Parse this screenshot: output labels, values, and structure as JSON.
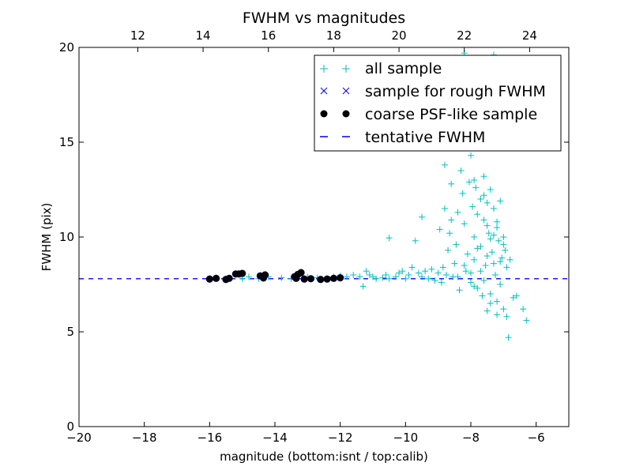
{
  "chart_data": {
    "type": "scatter",
    "title": "FWHM vs magnitudes",
    "xlabel": "magnitude (bottom:isnt / top:calib)",
    "ylabel": "FWHM (pix)",
    "xlim": [
      -20,
      -5
    ],
    "ylim": [
      0,
      20
    ],
    "top_xlim": [
      10.2,
      25.2
    ],
    "x_ticks": [
      -20,
      -18,
      -16,
      -14,
      -12,
      -10,
      -8,
      -6
    ],
    "x_tick_labels": [
      "−20",
      "−18",
      "−16",
      "−14",
      "−12",
      "−10",
      "−8",
      "−6"
    ],
    "y_ticks": [
      0,
      5,
      10,
      15,
      20
    ],
    "y_tick_labels": [
      "0",
      "5",
      "10",
      "15",
      "20"
    ],
    "top_x_ticks": [
      12,
      14,
      16,
      18,
      20,
      22,
      24
    ],
    "top_x_tick_labels": [
      "12",
      "14",
      "16",
      "18",
      "20",
      "22",
      "24"
    ],
    "grid": false,
    "legend_position": "top-right",
    "tentative_fwhm": 7.8,
    "series": [
      {
        "name": "all sample",
        "marker": "plus",
        "color": "#00bfbf",
        "points": [
          [
            -15.0,
            7.8
          ],
          [
            -14.8,
            7.9
          ],
          [
            -14.5,
            7.8
          ],
          [
            -14.2,
            7.9
          ],
          [
            -13.8,
            7.85
          ],
          [
            -13.5,
            7.8
          ],
          [
            -13.0,
            7.9
          ],
          [
            -12.7,
            7.85
          ],
          [
            -12.2,
            7.9
          ],
          [
            -12.0,
            7.95
          ],
          [
            -11.8,
            7.9
          ],
          [
            -11.6,
            8.0
          ],
          [
            -11.4,
            7.9
          ],
          [
            -11.3,
            7.4
          ],
          [
            -11.2,
            8.2
          ],
          [
            -11.1,
            8.0
          ],
          [
            -11.0,
            7.9
          ],
          [
            -10.9,
            7.8
          ],
          [
            -10.7,
            7.85
          ],
          [
            -10.6,
            8.0
          ],
          [
            -10.5,
            9.95
          ],
          [
            -10.5,
            7.8
          ],
          [
            -10.3,
            7.9
          ],
          [
            -10.2,
            8.1
          ],
          [
            -10.1,
            8.2
          ],
          [
            -10.0,
            7.8
          ],
          [
            -9.9,
            8.0
          ],
          [
            -9.8,
            8.4
          ],
          [
            -9.7,
            9.8
          ],
          [
            -9.6,
            8.1
          ],
          [
            -9.5,
            11.05
          ],
          [
            -9.5,
            7.9
          ],
          [
            -9.4,
            8.2
          ],
          [
            -9.3,
            7.8
          ],
          [
            -9.2,
            8.3
          ],
          [
            -9.1,
            7.7
          ],
          [
            -9.0,
            8.1
          ],
          [
            -8.95,
            10.4
          ],
          [
            -8.9,
            7.6
          ],
          [
            -8.85,
            8.4
          ],
          [
            -8.8,
            13.8
          ],
          [
            -8.8,
            11.5
          ],
          [
            -8.75,
            8.0
          ],
          [
            -8.7,
            9.3
          ],
          [
            -8.65,
            10.2
          ],
          [
            -8.6,
            12.8
          ],
          [
            -8.55,
            7.9
          ],
          [
            -8.5,
            8.6
          ],
          [
            -8.45,
            9.6
          ],
          [
            -8.4,
            11.3
          ],
          [
            -8.35,
            7.2
          ],
          [
            -8.3,
            13.5
          ],
          [
            -8.25,
            12.3
          ],
          [
            -8.2,
            19.7
          ],
          [
            -8.2,
            10.7
          ],
          [
            -8.15,
            8.2
          ],
          [
            -8.1,
            9.1
          ],
          [
            -8.05,
            12.9
          ],
          [
            -8.0,
            7.6
          ],
          [
            -8.0,
            14.3
          ],
          [
            -7.95,
            11.6
          ],
          [
            -7.9,
            10.0
          ],
          [
            -7.9,
            8.8
          ],
          [
            -7.85,
            12.6
          ],
          [
            -7.8,
            11.2
          ],
          [
            -7.8,
            7.3
          ],
          [
            -7.75,
            14.9
          ],
          [
            -7.7,
            9.5
          ],
          [
            -7.7,
            12.0
          ],
          [
            -7.65,
            6.9
          ],
          [
            -7.6,
            10.9
          ],
          [
            -7.6,
            13.2
          ],
          [
            -7.55,
            8.5
          ],
          [
            -7.5,
            11.8
          ],
          [
            -7.5,
            6.1
          ],
          [
            -7.45,
            10.2
          ],
          [
            -7.4,
            12.5
          ],
          [
            -7.4,
            7.0
          ],
          [
            -7.35,
            9.2
          ],
          [
            -7.3,
            19.6
          ],
          [
            -7.3,
            11.5
          ],
          [
            -7.25,
            8.0
          ],
          [
            -7.2,
            10.5
          ],
          [
            -7.2,
            6.6
          ],
          [
            -7.15,
            9.8
          ],
          [
            -7.1,
            11.9
          ],
          [
            -7.1,
            7.5
          ],
          [
            -7.05,
            8.9
          ],
          [
            -7.0,
            10.0
          ],
          [
            -7.0,
            6.2
          ],
          [
            -6.95,
            9.3
          ],
          [
            -6.9,
            5.8
          ],
          [
            -6.9,
            8.4
          ],
          [
            -6.85,
            4.7
          ],
          [
            -6.8,
            8.8
          ],
          [
            -6.7,
            6.8
          ],
          [
            -6.6,
            6.9
          ],
          [
            -6.4,
            6.2
          ],
          [
            -6.3,
            5.6
          ],
          [
            -8.4,
            7.9
          ],
          [
            -8.0,
            8.1
          ],
          [
            -7.6,
            7.7
          ],
          [
            -7.3,
            8.6
          ],
          [
            -7.8,
            9.4
          ],
          [
            -7.4,
            9.9
          ],
          [
            -7.0,
            9.6
          ],
          [
            -7.9,
            13.0
          ],
          [
            -7.6,
            12.2
          ],
          [
            -7.2,
            10.8
          ],
          [
            -8.6,
            10.9
          ],
          [
            -7.5,
            9.0
          ],
          [
            -7.7,
            8.2
          ],
          [
            -7.1,
            8.7
          ],
          [
            -7.9,
            7.4
          ],
          [
            -7.4,
            6.5
          ],
          [
            -7.2,
            5.9
          ],
          [
            -8.2,
            8.5
          ],
          [
            -7.3,
            10.1
          ],
          [
            -7.5,
            10.6
          ]
        ]
      },
      {
        "name": "sample for rough FWHM",
        "marker": "x",
        "color": "#0000ff",
        "points": []
      },
      {
        "name": "coarse PSF-like sample",
        "marker": "dot",
        "color": "#000000",
        "points": [
          [
            -16.0,
            7.78
          ],
          [
            -15.8,
            7.82
          ],
          [
            -15.5,
            7.76
          ],
          [
            -15.4,
            7.82
          ],
          [
            -15.2,
            8.05
          ],
          [
            -15.1,
            8.05
          ],
          [
            -15.0,
            8.08
          ],
          [
            -14.45,
            7.95
          ],
          [
            -14.35,
            7.84
          ],
          [
            -14.3,
            8.0
          ],
          [
            -13.4,
            7.9
          ],
          [
            -13.35,
            7.82
          ],
          [
            -13.3,
            8.02
          ],
          [
            -13.2,
            8.12
          ],
          [
            -13.1,
            7.78
          ],
          [
            -12.9,
            7.8
          ],
          [
            -12.6,
            7.76
          ],
          [
            -12.4,
            7.78
          ],
          [
            -12.2,
            7.82
          ],
          [
            -12.0,
            7.85
          ]
        ]
      },
      {
        "name": "tentative FWHM",
        "marker": "dashed-line",
        "color": "#0000ff",
        "points": []
      }
    ]
  }
}
